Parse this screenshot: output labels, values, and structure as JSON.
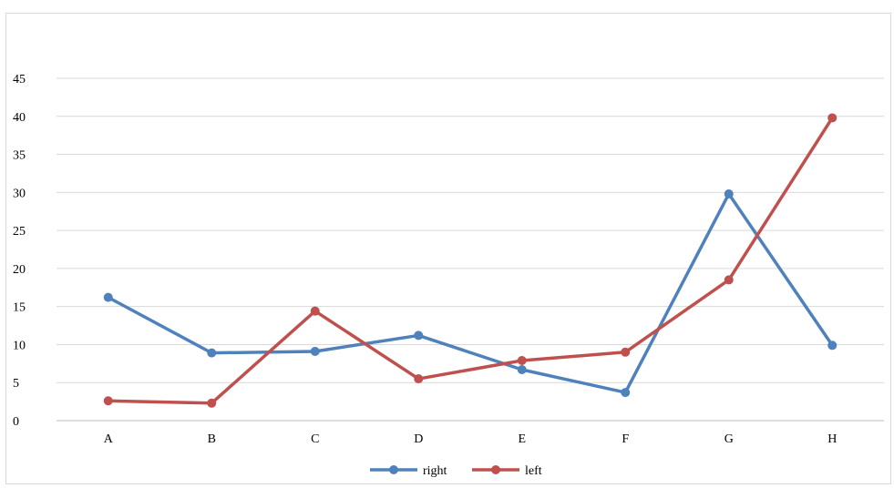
{
  "chart_data": {
    "type": "line",
    "categories": [
      "A",
      "B",
      "C",
      "D",
      "E",
      "F",
      "G",
      "H"
    ],
    "series": [
      {
        "name": "right",
        "color": "#4f81bd",
        "values": [
          16.2,
          8.9,
          9.1,
          11.2,
          6.7,
          3.7,
          29.8,
          9.9
        ]
      },
      {
        "name": "left",
        "color": "#c0504d",
        "values": [
          2.6,
          2.3,
          14.4,
          5.5,
          7.9,
          9.0,
          18.5,
          39.8
        ]
      }
    ],
    "title": "",
    "xlabel": "",
    "ylabel": "",
    "ylim": [
      0,
      45
    ],
    "yticks": [
      "0",
      "5",
      "10",
      "15",
      "20",
      "25",
      "30",
      "35",
      "40",
      "45"
    ],
    "grid": true,
    "legend_position": "bottom"
  }
}
